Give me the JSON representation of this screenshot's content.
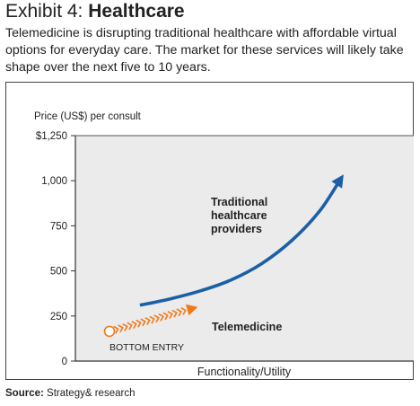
{
  "header": {
    "exhibit_label": "Exhibit 4: ",
    "title": "Healthcare",
    "description": "Telemedicine is disrupting traditional healthcare with affordable virtual options for everyday care. The market for these services will likely take shape over the next five to 10 years."
  },
  "source": {
    "label": "Source:",
    "text": " Strategy& research"
  },
  "colors": {
    "traditional": "#1a5fa8",
    "telemedicine": "#f07a1a",
    "plot_background": "#ebebeb",
    "axis": "#333333"
  },
  "chart_data": {
    "type": "line",
    "title": "",
    "ylabel": "Price (US$) per consult",
    "xlabel": "Functionality/Utility",
    "ylim": [
      0,
      1250
    ],
    "yticks": [
      0,
      250,
      500,
      750,
      1000,
      1250
    ],
    "yticklabels": [
      "0",
      "250",
      "500",
      "750",
      "1,000",
      "$1,250"
    ],
    "xlim": [
      0,
      10
    ],
    "grid": false,
    "series": [
      {
        "name": "Traditional healthcare providers",
        "label_lines": [
          "Traditional",
          "healthcare",
          "providers"
        ],
        "style": "solid-arrow",
        "x": [
          1.0,
          2.0,
          3.0,
          4.0,
          5.0,
          6.0,
          6.9,
          7.6
        ],
        "y": [
          310,
          345,
          390,
          450,
          540,
          670,
          830,
          1010
        ]
      },
      {
        "name": "Telemedicine",
        "style": "chevron-arrow",
        "x": [
          0.0,
          2.9
        ],
        "y": [
          165,
          300
        ]
      }
    ],
    "annotations": [
      {
        "text": "BOTTOM ENTRY",
        "x": 0.0,
        "y": 165,
        "marker": "open-circle"
      }
    ]
  }
}
